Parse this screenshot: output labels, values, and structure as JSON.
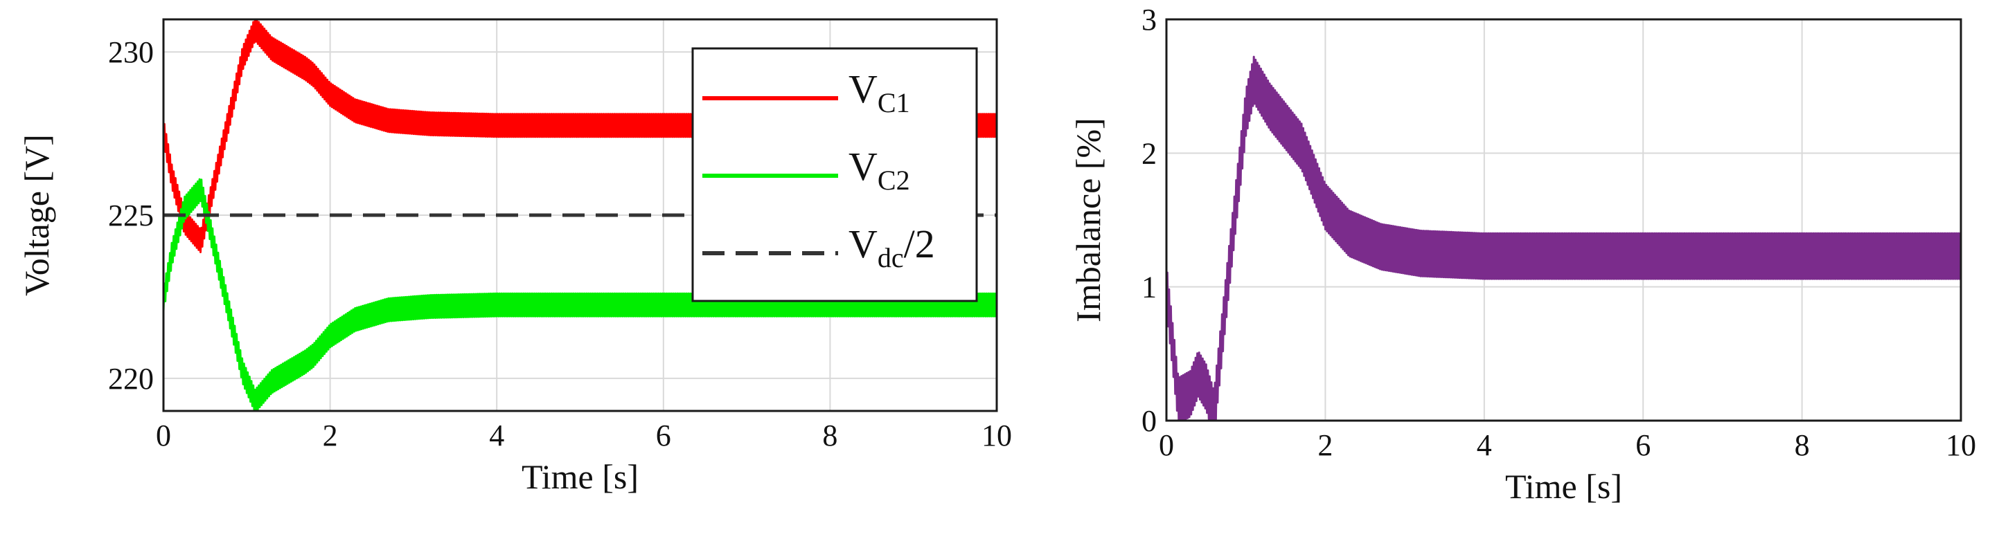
{
  "chart_data": [
    {
      "type": "line",
      "xlabel": "Time [s]",
      "ylabel": "Voltage [V]",
      "xlim": [
        0,
        10
      ],
      "ylim": [
        219,
        231
      ],
      "xticks": [
        0,
        2,
        4,
        6,
        8,
        10
      ],
      "yticks": [
        220,
        225,
        230
      ],
      "grid": true,
      "legend": "top-right",
      "series": [
        {
          "name": "V",
          "name_sub": "C1",
          "color": "#ff0000",
          "style": "solid",
          "ripple": 0.35,
          "x": [
            0,
            0.1,
            0.25,
            0.45,
            0.7,
            0.95,
            1.1,
            1.3,
            1.5,
            1.7,
            1.8,
            2.0,
            2.3,
            2.7,
            3.2,
            4,
            6,
            8,
            10
          ],
          "y": [
            227.6,
            226.2,
            224.8,
            224.2,
            227.0,
            229.8,
            230.7,
            230.1,
            229.8,
            229.5,
            229.3,
            228.7,
            228.2,
            227.9,
            227.8,
            227.75,
            227.75,
            227.75,
            227.75
          ]
        },
        {
          "name": "V",
          "name_sub": "C2",
          "color": "#00ee00",
          "style": "solid",
          "ripple": 0.35,
          "x": [
            0,
            0.1,
            0.25,
            0.45,
            0.7,
            0.95,
            1.1,
            1.3,
            1.5,
            1.7,
            1.8,
            2.0,
            2.3,
            2.7,
            3.2,
            4,
            6,
            8,
            10
          ],
          "y": [
            222.4,
            223.8,
            225.2,
            225.8,
            223.0,
            220.2,
            219.3,
            219.9,
            220.2,
            220.5,
            220.7,
            221.3,
            221.8,
            222.1,
            222.2,
            222.25,
            222.25,
            222.25,
            222.25
          ]
        },
        {
          "name": "V",
          "name_sub": "dc",
          "name_suffix": "/2",
          "color": "#333333",
          "style": "dashed",
          "ripple": 0,
          "x": [
            0,
            10
          ],
          "y": [
            225,
            225
          ]
        }
      ]
    },
    {
      "type": "line",
      "xlabel": "Time [s]",
      "ylabel": "Imbalance [%]",
      "xlim": [
        0,
        10
      ],
      "ylim": [
        0,
        3
      ],
      "xticks": [
        0,
        2,
        4,
        6,
        8,
        10
      ],
      "yticks": [
        0,
        1,
        2,
        3
      ],
      "grid": true,
      "series": [
        {
          "color": "#7b2c8c",
          "style": "solid",
          "ripple": 0.17,
          "x": [
            0,
            0.15,
            0.3,
            0.4,
            0.5,
            0.6,
            0.8,
            1.0,
            1.1,
            1.3,
            1.5,
            1.7,
            1.8,
            2.0,
            2.3,
            2.7,
            3.2,
            4,
            6,
            8,
            10
          ],
          "y": [
            1.0,
            0.15,
            0.2,
            0.35,
            0.25,
            0.05,
            1.2,
            2.3,
            2.55,
            2.35,
            2.2,
            2.05,
            1.9,
            1.6,
            1.4,
            1.3,
            1.25,
            1.23,
            1.23,
            1.23,
            1.23
          ]
        }
      ]
    }
  ]
}
